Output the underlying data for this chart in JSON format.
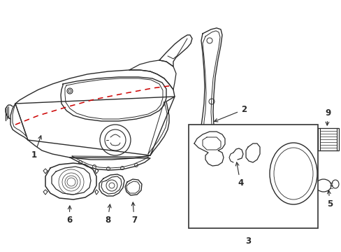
{
  "bg_color": "#ffffff",
  "line_color": "#2a2a2a",
  "red_color": "#cc0000",
  "fig_width": 4.89,
  "fig_height": 3.6,
  "dpi": 100
}
